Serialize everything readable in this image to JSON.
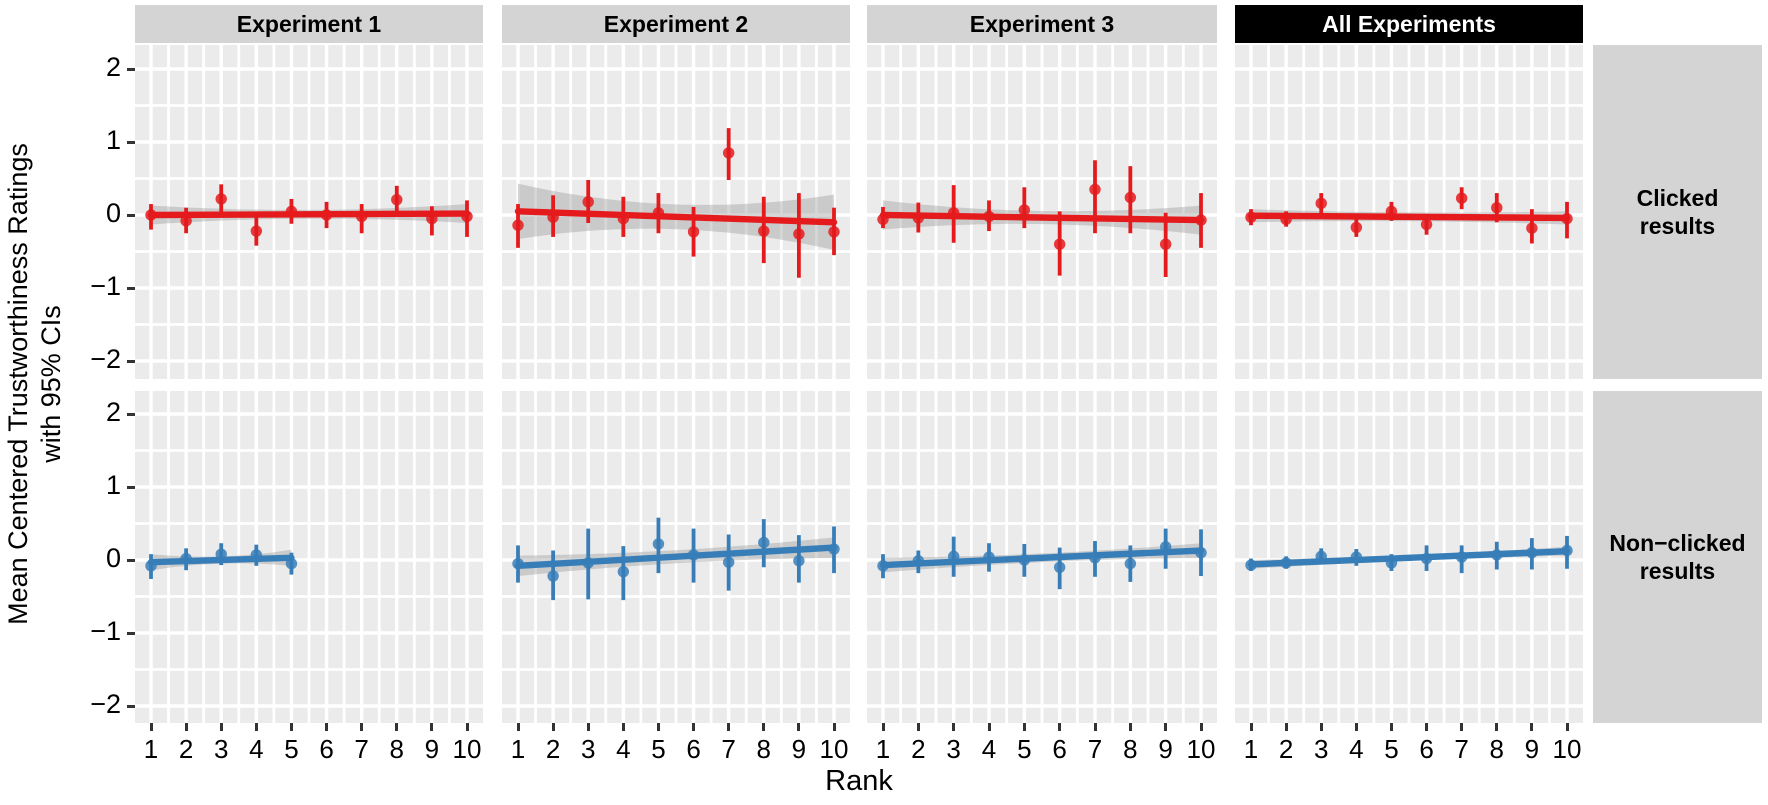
{
  "chart_data": {
    "type": "scatter",
    "description": "Faceted point-range plot with linear trend lines and 95% CI ribbons; columns are experiments, rows are clicked vs non-clicked search results.",
    "x_axis": {
      "label": "Rank",
      "ticks": [
        {
          "label": "1",
          "value": 1
        },
        {
          "label": "2",
          "value": 2
        },
        {
          "label": "3",
          "value": 3
        },
        {
          "label": "4",
          "value": 4
        },
        {
          "label": "5",
          "value": 5
        },
        {
          "label": "6",
          "value": 6
        },
        {
          "label": "7",
          "value": 7
        },
        {
          "label": "8",
          "value": 8
        },
        {
          "label": "9",
          "value": 9
        },
        {
          "label": "10",
          "value": 10
        }
      ],
      "xlim": [
        0.5,
        10.5
      ]
    },
    "y_axis": {
      "label_line1": "Mean Centered Trustworthiness Ratings",
      "label_line2": "with 95% CIs",
      "ticks": [
        {
          "label": "2",
          "value": 2
        },
        {
          "label": "1",
          "value": 1
        },
        {
          "label": "0",
          "value": 0
        },
        {
          "label": "−1",
          "value": -1
        },
        {
          "label": "−2",
          "value": -2
        }
      ],
      "ylim": [
        -2.3,
        2.3
      ],
      "grid": "major and minor white gridlines on gray panel"
    },
    "facet_cols": [
      {
        "label": "Experiment 1"
      },
      {
        "label": "Experiment 2"
      },
      {
        "label": "Experiment 3"
      },
      {
        "label": "All Experiments"
      }
    ],
    "facet_rows": [
      {
        "line1": "Clicked",
        "line2": "results"
      },
      {
        "line1": "Non−clicked",
        "line2": "results"
      }
    ],
    "colors": {
      "clicked": "#e41a1c",
      "nonclicked": "#377eb8",
      "ribbon": "#9e9e9e",
      "panel_bg": "#ebebeb",
      "gridline": "#ffffff",
      "strip_bg": "#d4d4d4",
      "strip_highlight_bg": "#000000",
      "strip_highlight_text": "#ffffff",
      "tick": "#333333"
    },
    "panels": [
      {
        "experiment": "Experiment 1",
        "condition": "Clicked results",
        "series": "clicked",
        "trend": {
          "x_start": 1,
          "x_end": 10,
          "y_start": 0.0,
          "y_end": 0.02
        },
        "ribbon": {
          "hw_end": 0.13,
          "hw_mid": 0.06
        },
        "points": [
          {
            "x": 1,
            "y": 0.0,
            "lo": -0.2,
            "hi": 0.15
          },
          {
            "x": 2,
            "y": -0.08,
            "lo": -0.25,
            "hi": 0.1
          },
          {
            "x": 3,
            "y": 0.22,
            "lo": 0.03,
            "hi": 0.42
          },
          {
            "x": 4,
            "y": -0.22,
            "lo": -0.42,
            "hi": -0.03
          },
          {
            "x": 5,
            "y": 0.05,
            "lo": -0.12,
            "hi": 0.22
          },
          {
            "x": 6,
            "y": 0.0,
            "lo": -0.18,
            "hi": 0.18
          },
          {
            "x": 7,
            "y": -0.02,
            "lo": -0.25,
            "hi": 0.15
          },
          {
            "x": 8,
            "y": 0.21,
            "lo": 0.02,
            "hi": 0.4
          },
          {
            "x": 9,
            "y": -0.05,
            "lo": -0.28,
            "hi": 0.12
          },
          {
            "x": 10,
            "y": -0.02,
            "lo": -0.3,
            "hi": 0.2
          }
        ]
      },
      {
        "experiment": "Experiment 2",
        "condition": "Clicked results",
        "series": "clicked",
        "trend": {
          "x_start": 1,
          "x_end": 10,
          "y_start": 0.05,
          "y_end": -0.1
        },
        "ribbon": {
          "hw_end": 0.38,
          "hw_mid": 0.17
        },
        "points": [
          {
            "x": 1,
            "y": -0.14,
            "lo": -0.45,
            "hi": 0.15
          },
          {
            "x": 2,
            "y": -0.03,
            "lo": -0.3,
            "hi": 0.27
          },
          {
            "x": 3,
            "y": 0.18,
            "lo": -0.11,
            "hi": 0.48
          },
          {
            "x": 4,
            "y": -0.05,
            "lo": -0.3,
            "hi": 0.25
          },
          {
            "x": 5,
            "y": 0.03,
            "lo": -0.25,
            "hi": 0.3
          },
          {
            "x": 6,
            "y": -0.23,
            "lo": -0.57,
            "hi": 0.11
          },
          {
            "x": 7,
            "y": 0.85,
            "lo": 0.48,
            "hi": 1.19
          },
          {
            "x": 8,
            "y": -0.22,
            "lo": -0.66,
            "hi": 0.25
          },
          {
            "x": 9,
            "y": -0.26,
            "lo": -0.86,
            "hi": 0.3
          },
          {
            "x": 10,
            "y": -0.23,
            "lo": -0.55,
            "hi": 0.1
          }
        ]
      },
      {
        "experiment": "Experiment 3",
        "condition": "Clicked results",
        "series": "clicked",
        "trend": {
          "x_start": 1,
          "x_end": 10,
          "y_start": 0.0,
          "y_end": -0.07
        },
        "ribbon": {
          "hw_end": 0.2,
          "hw_mid": 0.09
        },
        "points": [
          {
            "x": 1,
            "y": -0.06,
            "lo": -0.18,
            "hi": 0.11
          },
          {
            "x": 2,
            "y": -0.04,
            "lo": -0.24,
            "hi": 0.17
          },
          {
            "x": 3,
            "y": 0.03,
            "lo": -0.38,
            "hi": 0.41
          },
          {
            "x": 4,
            "y": -0.02,
            "lo": -0.22,
            "hi": 0.2
          },
          {
            "x": 5,
            "y": 0.07,
            "lo": -0.18,
            "hi": 0.38
          },
          {
            "x": 6,
            "y": -0.4,
            "lo": -0.83,
            "hi": 0.05
          },
          {
            "x": 7,
            "y": 0.35,
            "lo": -0.25,
            "hi": 0.75
          },
          {
            "x": 8,
            "y": 0.24,
            "lo": -0.25,
            "hi": 0.67
          },
          {
            "x": 9,
            "y": -0.4,
            "lo": -0.85,
            "hi": 0.03
          },
          {
            "x": 10,
            "y": -0.07,
            "lo": -0.45,
            "hi": 0.3
          }
        ]
      },
      {
        "experiment": "All Experiments",
        "condition": "Clicked results",
        "series": "clicked",
        "trend": {
          "x_start": 1,
          "x_end": 10,
          "y_start": -0.01,
          "y_end": -0.04
        },
        "ribbon": {
          "hw_end": 0.09,
          "hw_mid": 0.06
        },
        "points": [
          {
            "x": 1,
            "y": -0.03,
            "lo": -0.14,
            "hi": 0.08
          },
          {
            "x": 2,
            "y": -0.06,
            "lo": -0.16,
            "hi": 0.05
          },
          {
            "x": 3,
            "y": 0.16,
            "lo": 0.02,
            "hi": 0.3
          },
          {
            "x": 4,
            "y": -0.17,
            "lo": -0.3,
            "hi": -0.04
          },
          {
            "x": 5,
            "y": 0.05,
            "lo": -0.08,
            "hi": 0.18
          },
          {
            "x": 6,
            "y": -0.13,
            "lo": -0.27,
            "hi": 0.01
          },
          {
            "x": 7,
            "y": 0.23,
            "lo": 0.08,
            "hi": 0.38
          },
          {
            "x": 8,
            "y": 0.1,
            "lo": -0.1,
            "hi": 0.3
          },
          {
            "x": 9,
            "y": -0.18,
            "lo": -0.39,
            "hi": 0.08
          },
          {
            "x": 10,
            "y": -0.05,
            "lo": -0.32,
            "hi": 0.18
          }
        ]
      },
      {
        "experiment": "Experiment 1",
        "condition": "Non-clicked results",
        "series": "nonclicked",
        "trend": {
          "x_start": 1,
          "x_end": 5,
          "y_start": -0.03,
          "y_end": 0.03
        },
        "ribbon": {
          "hw_end": 0.11,
          "hw_mid": 0.05
        },
        "points": [
          {
            "x": 1,
            "y": -0.08,
            "lo": -0.26,
            "hi": 0.08
          },
          {
            "x": 2,
            "y": 0.02,
            "lo": -0.14,
            "hi": 0.16
          },
          {
            "x": 3,
            "y": 0.08,
            "lo": -0.07,
            "hi": 0.23
          },
          {
            "x": 4,
            "y": 0.07,
            "lo": -0.08,
            "hi": 0.21
          },
          {
            "x": 5,
            "y": -0.05,
            "lo": -0.2,
            "hi": 0.1
          }
        ]
      },
      {
        "experiment": "Experiment 2",
        "condition": "Non-clicked results",
        "series": "nonclicked",
        "trend": {
          "x_start": 1,
          "x_end": 10,
          "y_start": -0.08,
          "y_end": 0.17
        },
        "ribbon": {
          "hw_end": 0.14,
          "hw_mid": 0.09
        },
        "points": [
          {
            "x": 1,
            "y": -0.05,
            "lo": -0.31,
            "hi": 0.2
          },
          {
            "x": 2,
            "y": -0.22,
            "lo": -0.55,
            "hi": 0.13
          },
          {
            "x": 3,
            "y": -0.04,
            "lo": -0.54,
            "hi": 0.43
          },
          {
            "x": 4,
            "y": -0.16,
            "lo": -0.55,
            "hi": 0.19
          },
          {
            "x": 5,
            "y": 0.22,
            "lo": -0.18,
            "hi": 0.58
          },
          {
            "x": 6,
            "y": 0.07,
            "lo": -0.31,
            "hi": 0.43
          },
          {
            "x": 7,
            "y": -0.03,
            "lo": -0.42,
            "hi": 0.35
          },
          {
            "x": 8,
            "y": 0.24,
            "lo": -0.1,
            "hi": 0.56
          },
          {
            "x": 9,
            "y": -0.01,
            "lo": -0.31,
            "hi": 0.34
          },
          {
            "x": 10,
            "y": 0.15,
            "lo": -0.18,
            "hi": 0.46
          }
        ]
      },
      {
        "experiment": "Experiment 3",
        "condition": "Non-clicked results",
        "series": "nonclicked",
        "trend": {
          "x_start": 1,
          "x_end": 10,
          "y_start": -0.07,
          "y_end": 0.13
        },
        "ribbon": {
          "hw_end": 0.1,
          "hw_mid": 0.06
        },
        "points": [
          {
            "x": 1,
            "y": -0.08,
            "lo": -0.25,
            "hi": 0.08
          },
          {
            "x": 2,
            "y": -0.01,
            "lo": -0.18,
            "hi": 0.13
          },
          {
            "x": 3,
            "y": 0.05,
            "lo": -0.23,
            "hi": 0.32
          },
          {
            "x": 4,
            "y": 0.04,
            "lo": -0.16,
            "hi": 0.23
          },
          {
            "x": 5,
            "y": 0.0,
            "lo": -0.23,
            "hi": 0.22
          },
          {
            "x": 6,
            "y": -0.1,
            "lo": -0.4,
            "hi": 0.17
          },
          {
            "x": 7,
            "y": 0.03,
            "lo": -0.23,
            "hi": 0.26
          },
          {
            "x": 8,
            "y": -0.05,
            "lo": -0.3,
            "hi": 0.2
          },
          {
            "x": 9,
            "y": 0.18,
            "lo": -0.12,
            "hi": 0.43
          },
          {
            "x": 10,
            "y": 0.1,
            "lo": -0.22,
            "hi": 0.42
          }
        ]
      },
      {
        "experiment": "All Experiments",
        "condition": "Non-clicked results",
        "series": "nonclicked",
        "trend": {
          "x_start": 1,
          "x_end": 10,
          "y_start": -0.06,
          "y_end": 0.12
        },
        "ribbon": {
          "hw_end": 0.06,
          "hw_mid": 0.04
        },
        "points": [
          {
            "x": 1,
            "y": -0.07,
            "lo": -0.15,
            "hi": 0.02
          },
          {
            "x": 2,
            "y": -0.04,
            "lo": -0.12,
            "hi": 0.05
          },
          {
            "x": 3,
            "y": 0.05,
            "lo": -0.06,
            "hi": 0.16
          },
          {
            "x": 4,
            "y": 0.04,
            "lo": -0.08,
            "hi": 0.15
          },
          {
            "x": 5,
            "y": -0.04,
            "lo": -0.15,
            "hi": 0.08
          },
          {
            "x": 6,
            "y": 0.02,
            "lo": -0.15,
            "hi": 0.2
          },
          {
            "x": 7,
            "y": 0.04,
            "lo": -0.18,
            "hi": 0.2
          },
          {
            "x": 8,
            "y": 0.07,
            "lo": -0.13,
            "hi": 0.25
          },
          {
            "x": 9,
            "y": 0.1,
            "lo": -0.13,
            "hi": 0.3
          },
          {
            "x": 10,
            "y": 0.13,
            "lo": -0.12,
            "hi": 0.33
          }
        ]
      }
    ]
  }
}
